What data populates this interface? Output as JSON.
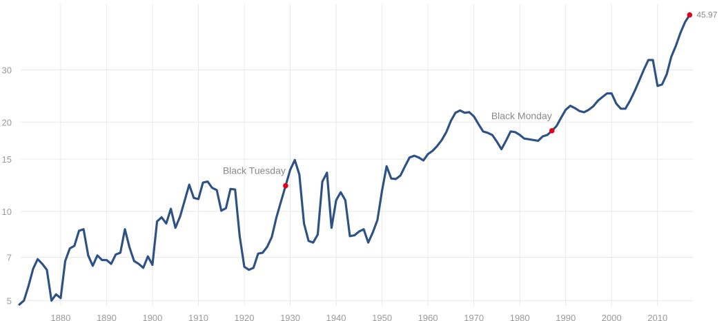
{
  "chart_data": {
    "type": "line",
    "yscale": "log",
    "ylim": [
      4.8,
      50
    ],
    "xlim": [
      1871,
      2018
    ],
    "x_ticks": [
      1880,
      1890,
      1900,
      1910,
      1920,
      1930,
      1940,
      1950,
      1960,
      1970,
      1980,
      1990,
      2000,
      2010
    ],
    "y_ticks": [
      5,
      7,
      10,
      15,
      20,
      30
    ],
    "grid": true,
    "colors": {
      "line": "#2f5286",
      "marker": "#e4001b",
      "grid": "#e8e8e8",
      "text": "#9a9a9a"
    },
    "series": [
      {
        "x": [
          1871,
          1872,
          1873,
          1874,
          1875,
          1876,
          1877,
          1878,
          1879,
          1880,
          1881,
          1882,
          1883,
          1884,
          1885,
          1886,
          1887,
          1888,
          1889,
          1890,
          1891,
          1892,
          1893,
          1894,
          1895,
          1896,
          1897,
          1898,
          1899,
          1900,
          1901,
          1902,
          1903,
          1904,
          1905,
          1906,
          1907,
          1908,
          1909,
          1910,
          1911,
          1912,
          1913,
          1914,
          1915,
          1916,
          1917,
          1918,
          1919,
          1920,
          1921,
          1922,
          1923,
          1924,
          1925,
          1926,
          1927,
          1928,
          1929,
          1930,
          1931,
          1932,
          1933,
          1934,
          1935,
          1936,
          1937,
          1938,
          1939,
          1940,
          1941,
          1942,
          1943,
          1944,
          1945,
          1946,
          1947,
          1948,
          1949,
          1950,
          1951,
          1952,
          1953,
          1954,
          1955,
          1956,
          1957,
          1958,
          1959,
          1960,
          1961,
          1962,
          1963,
          1964,
          1965,
          1966,
          1967,
          1968,
          1969,
          1970,
          1971,
          1972,
          1973,
          1974,
          1975,
          1976,
          1977,
          1978,
          1979,
          1980,
          1981,
          1982,
          1983,
          1984,
          1985,
          1986,
          1987,
          1988,
          1989,
          1990,
          1991,
          1992,
          1993,
          1994,
          1995,
          1996,
          1997,
          1998,
          1999,
          2000,
          2001,
          2002,
          2003,
          2004,
          2005,
          2006,
          2007,
          2008,
          2009,
          2010,
          2011,
          2012,
          2013,
          2014,
          2015,
          2016,
          2017
        ],
        "y": [
          4.85,
          5.0,
          5.6,
          6.4,
          6.9,
          6.65,
          6.35,
          5.0,
          5.25,
          5.1,
          6.8,
          7.5,
          7.65,
          8.6,
          8.7,
          7.1,
          6.55,
          7.1,
          6.85,
          6.85,
          6.65,
          7.15,
          7.25,
          8.7,
          7.55,
          6.8,
          6.65,
          6.45,
          7.05,
          6.6,
          9.25,
          9.55,
          9.1,
          10.2,
          8.8,
          9.6,
          10.85,
          12.3,
          11.1,
          11.0,
          12.5,
          12.6,
          12.0,
          11.8,
          10.05,
          10.25,
          11.9,
          11.85,
          8.25,
          6.5,
          6.35,
          6.45,
          7.2,
          7.25,
          7.6,
          8.2,
          9.55,
          10.8,
          12.2,
          13.8,
          14.9,
          13.3,
          9.1,
          7.95,
          7.85,
          8.35,
          12.6,
          13.5,
          8.8,
          10.9,
          11.6,
          10.9,
          8.25,
          8.3,
          8.55,
          8.7,
          7.85,
          8.5,
          9.35,
          11.75,
          14.2,
          12.9,
          12.85,
          13.2,
          14.2,
          15.2,
          15.4,
          15.2,
          14.85,
          15.6,
          16.0,
          16.6,
          17.4,
          18.5,
          20.2,
          21.5,
          21.9,
          21.5,
          21.6,
          20.9,
          19.7,
          18.6,
          18.4,
          18.1,
          17.2,
          16.2,
          17.3,
          18.6,
          18.5,
          18.1,
          17.6,
          17.5,
          17.4,
          17.3,
          17.9,
          18.1,
          18.7,
          19.4,
          20.7,
          22.0,
          22.7,
          22.3,
          21.8,
          21.6,
          22.0,
          22.6,
          23.6,
          24.3,
          25.0,
          25.0,
          23.1,
          22.2,
          22.2,
          23.6,
          25.4,
          27.6,
          30.0,
          32.4,
          32.4,
          26.5,
          26.8,
          29.0,
          33.2,
          36.2,
          40.0,
          43.5,
          45.97
        ]
      }
    ],
    "annotations": [
      {
        "label": "Black Tuesday",
        "x": 1929,
        "y": 12.2
      },
      {
        "label": "Black Monday",
        "x": 1987,
        "y": 18.7
      }
    ],
    "end_point": {
      "x": 2017,
      "y": 45.97,
      "label": "45.97"
    }
  }
}
